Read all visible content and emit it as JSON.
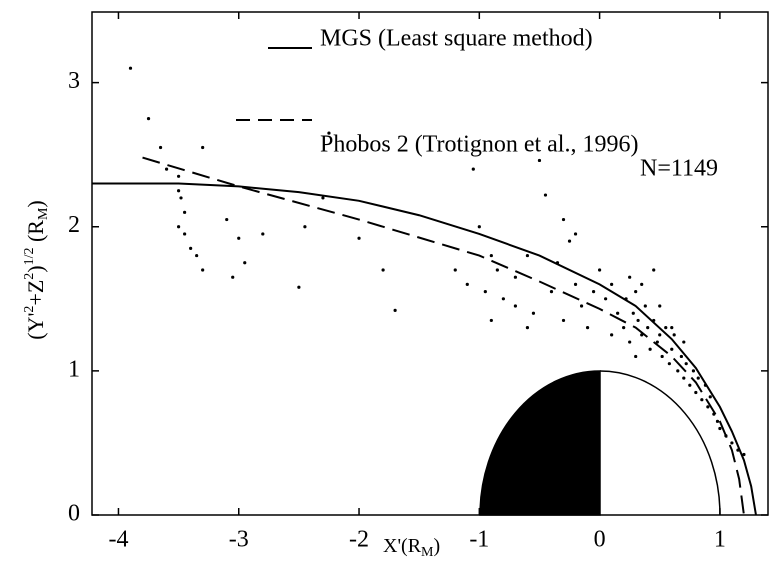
{
  "chart_data": {
    "type": "scatter",
    "annotation": "N=1149",
    "xlabel_parts": [
      "X'",
      "(R",
      "M",
      ")"
    ],
    "ylabel_parts": [
      "(Y'",
      "2",
      "+Z",
      "2",
      ")",
      "1/2",
      " (R",
      "M",
      ")"
    ],
    "xlim": [
      -4.22,
      1.4
    ],
    "ylim": [
      0,
      3.49
    ],
    "xticks": [
      -4,
      -3,
      -2,
      -1,
      0,
      1
    ],
    "yticks": [
      0,
      1,
      2,
      3
    ],
    "legend": "upper right",
    "series": [
      {
        "name": "MGS (Least square method)",
        "color": "#000000",
        "style": "solid",
        "x": [
          -4.22,
          -3.5,
          -3.0,
          -2.5,
          -2.0,
          -1.5,
          -1.0,
          -0.5,
          0.0,
          0.3,
          0.6,
          0.8,
          1.0,
          1.1,
          1.2,
          1.26,
          1.3
        ],
        "y": [
          2.3,
          2.3,
          2.28,
          2.24,
          2.18,
          2.08,
          1.95,
          1.8,
          1.6,
          1.45,
          1.22,
          1.02,
          0.75,
          0.58,
          0.38,
          0.2,
          0.0
        ]
      },
      {
        "name": "Phobos 2 (Trotignon et al., 1996)",
        "color": "#000000",
        "style": "dashed",
        "x": [
          -3.8,
          -3.0,
          -2.0,
          -1.0,
          -0.5,
          0.0,
          0.3,
          0.6,
          0.8,
          1.0,
          1.1,
          1.16,
          1.2
        ],
        "y": [
          2.48,
          2.28,
          2.05,
          1.8,
          1.62,
          1.43,
          1.3,
          1.1,
          0.92,
          0.65,
          0.45,
          0.25,
          0.0
        ]
      }
    ],
    "points": {
      "color": "#000000",
      "x": [
        -3.9,
        -3.75,
        -3.65,
        -3.6,
        -3.5,
        -3.48,
        -3.5,
        -3.45,
        -3.4,
        -3.35,
        -3.3,
        -3.45,
        -3.5,
        -3.3,
        -3.1,
        -3.05,
        -2.95,
        -3.0,
        -2.8,
        -2.5,
        -2.45,
        -2.3,
        -2.25,
        -2.0,
        -1.8,
        -1.7,
        -1.05,
        -0.9,
        -0.5,
        -0.45,
        -0.3,
        -1.0,
        -1.1,
        -0.95,
        -0.85,
        -0.8,
        -0.7,
        -0.6,
        -0.55,
        -0.4,
        -0.35,
        -0.25,
        -0.2,
        -0.15,
        -0.1,
        -0.05,
        0.0,
        0.05,
        0.1,
        0.15,
        0.2,
        0.22,
        0.25,
        0.28,
        0.3,
        0.32,
        0.35,
        0.38,
        0.4,
        0.42,
        0.45,
        0.48,
        0.5,
        0.52,
        0.55,
        0.58,
        0.6,
        0.62,
        0.65,
        0.68,
        0.7,
        0.72,
        0.75,
        0.78,
        0.8,
        0.82,
        0.85,
        0.88,
        0.9,
        0.92,
        0.95,
        0.98,
        1.0,
        1.05,
        1.1,
        1.15,
        1.2,
        0.35,
        0.45,
        0.6,
        0.7,
        -0.2,
        -0.6,
        0.1,
        0.3,
        0.5,
        0.25,
        -0.3,
        -0.7,
        -1.2,
        -0.9
      ],
      "y": [
        3.1,
        2.75,
        2.55,
        2.4,
        2.35,
        2.2,
        2.0,
        1.95,
        1.85,
        1.8,
        1.7,
        2.1,
        2.25,
        2.55,
        2.05,
        1.65,
        1.75,
        1.92,
        1.95,
        1.58,
        2.0,
        2.2,
        2.65,
        1.92,
        1.7,
        1.42,
        2.4,
        1.8,
        2.46,
        2.22,
        2.05,
        2.0,
        1.6,
        1.55,
        1.7,
        1.5,
        1.65,
        1.8,
        1.4,
        1.55,
        1.75,
        1.9,
        1.6,
        1.45,
        1.3,
        1.55,
        1.7,
        1.5,
        1.6,
        1.4,
        1.3,
        1.5,
        1.2,
        1.4,
        1.55,
        1.35,
        1.25,
        1.45,
        1.3,
        1.15,
        1.35,
        1.2,
        1.25,
        1.1,
        1.3,
        1.05,
        1.15,
        1.25,
        1.0,
        1.1,
        0.95,
        1.05,
        0.9,
        1.0,
        0.85,
        0.95,
        0.8,
        0.9,
        0.75,
        0.82,
        0.7,
        0.65,
        0.6,
        0.55,
        0.5,
        0.45,
        0.42,
        1.6,
        1.7,
        1.3,
        1.2,
        1.95,
        1.3,
        1.25,
        1.1,
        1.45,
        1.65,
        1.35,
        1.45,
        1.7,
        1.35
      ]
    }
  }
}
